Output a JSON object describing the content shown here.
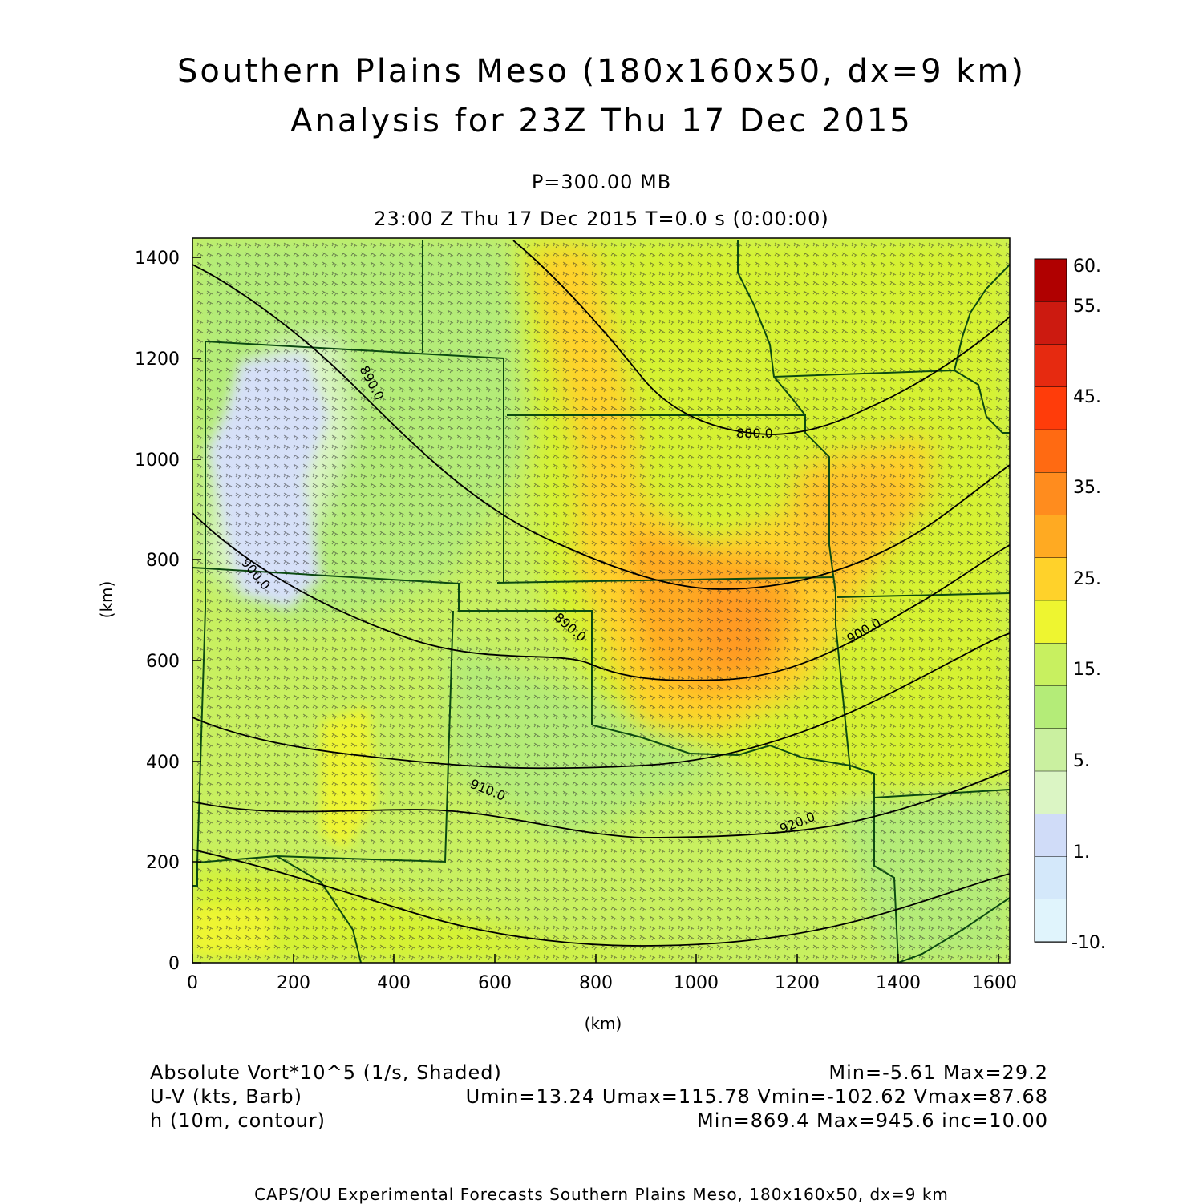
{
  "title": {
    "line1": "Southern Plains Meso (180x160x50, dx=9 km)",
    "line2": "Analysis for 23Z Thu 17 Dec 2015"
  },
  "level": "P=300.00 MB",
  "valid_time": "23:00 Z Thu 17 Dec 2015    T=0.0 s (0:00:00)",
  "axes": {
    "x_unit": "(km)",
    "y_unit": "(km)",
    "x_ticks": [
      "0",
      "200",
      "400",
      "600",
      "800",
      "1000",
      "1200",
      "1400",
      "1600"
    ],
    "y_ticks": [
      "0",
      "200",
      "400",
      "600",
      "800",
      "1000",
      "1200",
      "1400"
    ]
  },
  "colorbar": {
    "labels": [
      "60.",
      "55.",
      "45.",
      "35.",
      "25.",
      "15.",
      "5.",
      "1.",
      "-10."
    ],
    "colors": [
      "#b00000",
      "#cc1a10",
      "#e62a10",
      "#ff3c0a",
      "#ff6a12",
      "#ff8c1e",
      "#ffaa22",
      "#ffd22a",
      "#eef530",
      "#c8f060",
      "#b4ec78",
      "#caf0a0",
      "#dbf5c4",
      "#d0dcf8",
      "#d4e8fa",
      "#e0f4fc"
    ]
  },
  "contour_labels": [
    "880.0",
    "890.0",
    "890.0",
    "900.0",
    "900.0",
    "910.0",
    "920.0",
    "920.0"
  ],
  "legend": {
    "field1": "Absolute Vort*10^5 (1/s, Shaded)",
    "field1_stats": "Min=-5.61 Max=29.2",
    "field2": "U-V (kts, Barb)",
    "field2_stats": "Umin=13.24 Umax=115.78 Vmin=-102.62 Vmax=87.68",
    "field3": "h (10m, contour)",
    "field3_stats": "Min=869.4 Max=945.6 inc=10.00"
  },
  "footer": "CAPS/OU Experimental Forecasts  Southern Plains Meso, 180x160x50, dx=9 km"
}
